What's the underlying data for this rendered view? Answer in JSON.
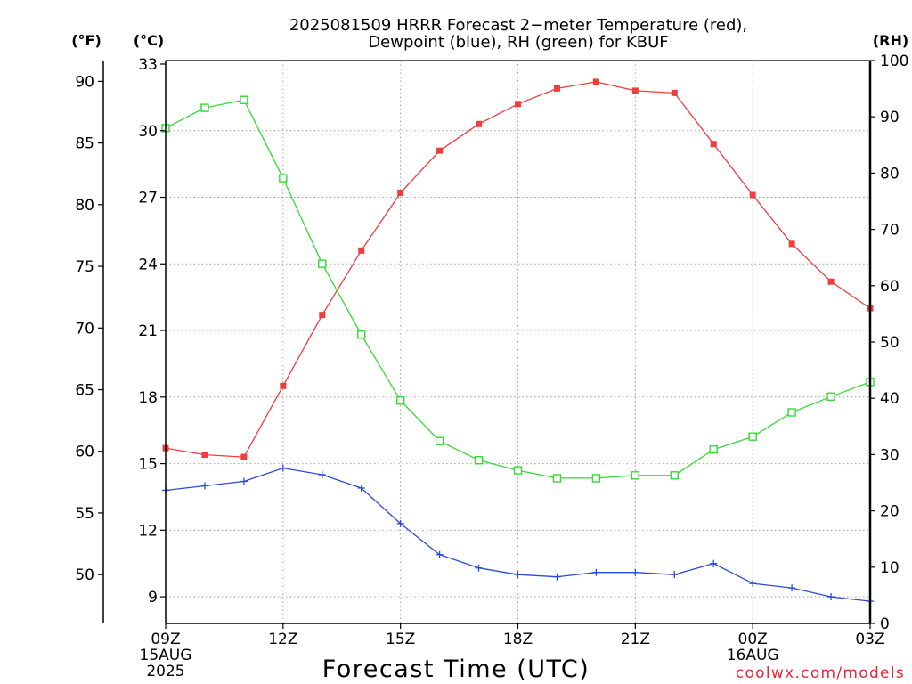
{
  "credit": "coolwx.com/models",
  "colors": {
    "background": "#ffffff",
    "axes": "#000000",
    "grid": "#a0a0a0",
    "credit": "#e6283c"
  },
  "chart_data": {
    "type": "line",
    "title": [
      "2025081509 HRRR Forecast 2−meter Temperature (red),",
      "Dewpoint (blue), RH (green) for KBUF"
    ],
    "xlabel": "Forecast Time (UTC)",
    "x": [
      9,
      10,
      11,
      12,
      13,
      14,
      15,
      16,
      17,
      18,
      19,
      20,
      21,
      22,
      23,
      0,
      1,
      2,
      3
    ],
    "x_ticks": [
      {
        "label": "09Z",
        "sublabels": [
          "15AUG",
          "2025"
        ]
      },
      {
        "label": "12Z",
        "sublabels": []
      },
      {
        "label": "15Z",
        "sublabels": []
      },
      {
        "label": "18Z",
        "sublabels": []
      },
      {
        "label": "21Z",
        "sublabels": []
      },
      {
        "label": "00Z",
        "sublabels": [
          "16AUG"
        ]
      },
      {
        "label": "03Z",
        "sublabels": []
      }
    ],
    "y_axes": {
      "fahrenheit": {
        "label": "(°F)",
        "ticks": [
          50,
          55,
          60,
          65,
          70,
          75,
          80,
          85,
          90
        ],
        "ylim": [
          46.04,
          91.69
        ]
      },
      "celsius": {
        "label": "(°C)",
        "ticks": [
          9,
          12,
          15,
          18,
          21,
          24,
          27,
          30,
          33
        ],
        "ylim": [
          7.8,
          33.16
        ]
      },
      "rh": {
        "label": "(RH)",
        "ticks": [
          0,
          10,
          20,
          30,
          40,
          50,
          60,
          70,
          80,
          90,
          100
        ],
        "ylim": [
          0,
          100
        ]
      }
    },
    "grid": true,
    "series": [
      {
        "color": "#f03c3c",
        "values": [
          15.7,
          15.4,
          15.3,
          18.5,
          21.7,
          24.6,
          27.2,
          29.1,
          30.3,
          31.2,
          31.9,
          32.2,
          31.8,
          31.7,
          29.4,
          27.1,
          24.9,
          23.2,
          22.0
        ]
      },
      {
        "color": "#2a4bd7",
        "values": [
          13.8,
          14.0,
          14.2,
          14.8,
          14.5,
          13.9,
          12.3,
          10.9,
          10.3,
          10.0,
          9.9,
          10.1,
          10.1,
          10.0,
          10.5,
          9.6,
          9.4,
          9.0,
          8.8
        ]
      },
      {
        "color": "#32dc32",
        "right_axis": true,
        "values": [
          88.0,
          91.6,
          93.0,
          79.1,
          63.9,
          51.3,
          39.6,
          32.4,
          29.0,
          27.2,
          25.8,
          25.8,
          26.3,
          26.3,
          30.9,
          33.2,
          37.5,
          40.3,
          42.9
        ]
      }
    ]
  }
}
